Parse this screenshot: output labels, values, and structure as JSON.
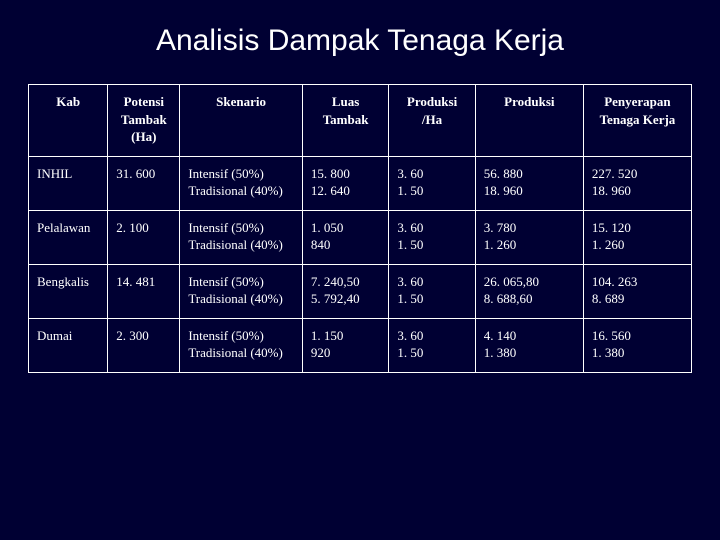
{
  "title": "Analisis Dampak Tenaga Kerja",
  "columns": [
    "Kab",
    "Potensi Tambak (Ha)",
    "Skenario",
    "Luas Tambak",
    "Produksi /Ha",
    "Produksi",
    "Penyerapan Tenaga Kerja"
  ],
  "rows": [
    {
      "kab": "INHIL",
      "potensi": "31. 600",
      "skenario": [
        "Intensif (50%)",
        "Tradisional (40%)"
      ],
      "luas": [
        "15. 800",
        "12. 640"
      ],
      "produksi_ha": [
        "3. 60",
        "1. 50"
      ],
      "produksi": [
        "56. 880",
        "18. 960"
      ],
      "penyerapan": [
        "227. 520",
        "18. 960"
      ]
    },
    {
      "kab": "Pelalawan",
      "potensi": "2. 100",
      "skenario": [
        "Intensif (50%)",
        "Tradisional (40%)"
      ],
      "luas": [
        "1. 050",
        "840"
      ],
      "produksi_ha": [
        "3. 60",
        "1. 50"
      ],
      "produksi": [
        "3. 780",
        "1. 260"
      ],
      "penyerapan": [
        "15. 120",
        "1. 260"
      ]
    },
    {
      "kab": "Bengkalis",
      "potensi": "14. 481",
      "skenario": [
        "Intensif (50%)",
        "Tradisional (40%)"
      ],
      "luas": [
        "7. 240,50",
        "5. 792,40"
      ],
      "produksi_ha": [
        "3. 60",
        "1. 50"
      ],
      "produksi": [
        "26. 065,80",
        "8. 688,60"
      ],
      "penyerapan": [
        "104. 263",
        "8. 689"
      ]
    },
    {
      "kab": "Dumai",
      "potensi": "2. 300",
      "skenario": [
        "Intensif (50%)",
        "Tradisional (40%)"
      ],
      "luas": [
        "1. 150",
        "920"
      ],
      "produksi_ha": [
        "3. 60",
        "1. 50"
      ],
      "produksi": [
        "4. 140",
        "1. 380"
      ],
      "penyerapan": [
        "16. 560",
        "1. 380"
      ]
    }
  ],
  "colors": {
    "background": "#000033",
    "border": "#ffffff",
    "text": "#ffffff"
  },
  "col_widths_pct": [
    11,
    10,
    17,
    12,
    12,
    15,
    15
  ]
}
